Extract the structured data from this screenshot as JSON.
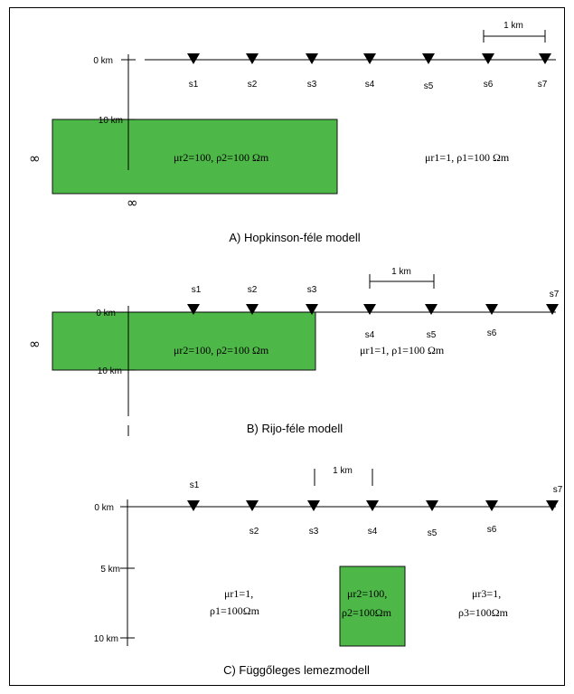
{
  "colors": {
    "block": "#4db747",
    "line": "#000000"
  },
  "panels": {
    "a": {
      "caption": "A) Hopkinson-féle modell",
      "depth_labels": [
        "0 km",
        "10 km"
      ],
      "stations": [
        "s1",
        "s2",
        "s3",
        "s4",
        "s5",
        "s6",
        "s7"
      ],
      "scale_label": "1 km",
      "inside": "μr2=100, ρ2=100 Ωm",
      "outside": "μr1=1, ρ1=100 Ωm",
      "inf_left": "∞",
      "inf_bottom": "∞"
    },
    "b": {
      "caption": "B) Rijo-féle modell",
      "depth_labels": [
        "0 km",
        "10 km"
      ],
      "stations": [
        "s1",
        "s2",
        "s3",
        "s4",
        "s5",
        "s6",
        "s7"
      ],
      "scale_label": "1 km",
      "inside": "μr2=100, ρ2=100 Ωm",
      "outside": "μr1=1, ρ1=100 Ωm",
      "inf_left": "∞"
    },
    "c": {
      "caption": "C) Függőleges lemezmodell",
      "depth_labels": [
        "0 km",
        "5 km",
        "10 km"
      ],
      "stations": [
        "s1",
        "s2",
        "s3",
        "s4",
        "s5",
        "s6",
        "s7"
      ],
      "scale_label": "1 km",
      "left": [
        "μr1=1,",
        "ρ1=100Ωm"
      ],
      "inside": [
        "μr2=100,",
        "ρ2=100Ωm"
      ],
      "right": [
        "μr3=1,",
        "ρ3=100Ωm"
      ]
    }
  }
}
